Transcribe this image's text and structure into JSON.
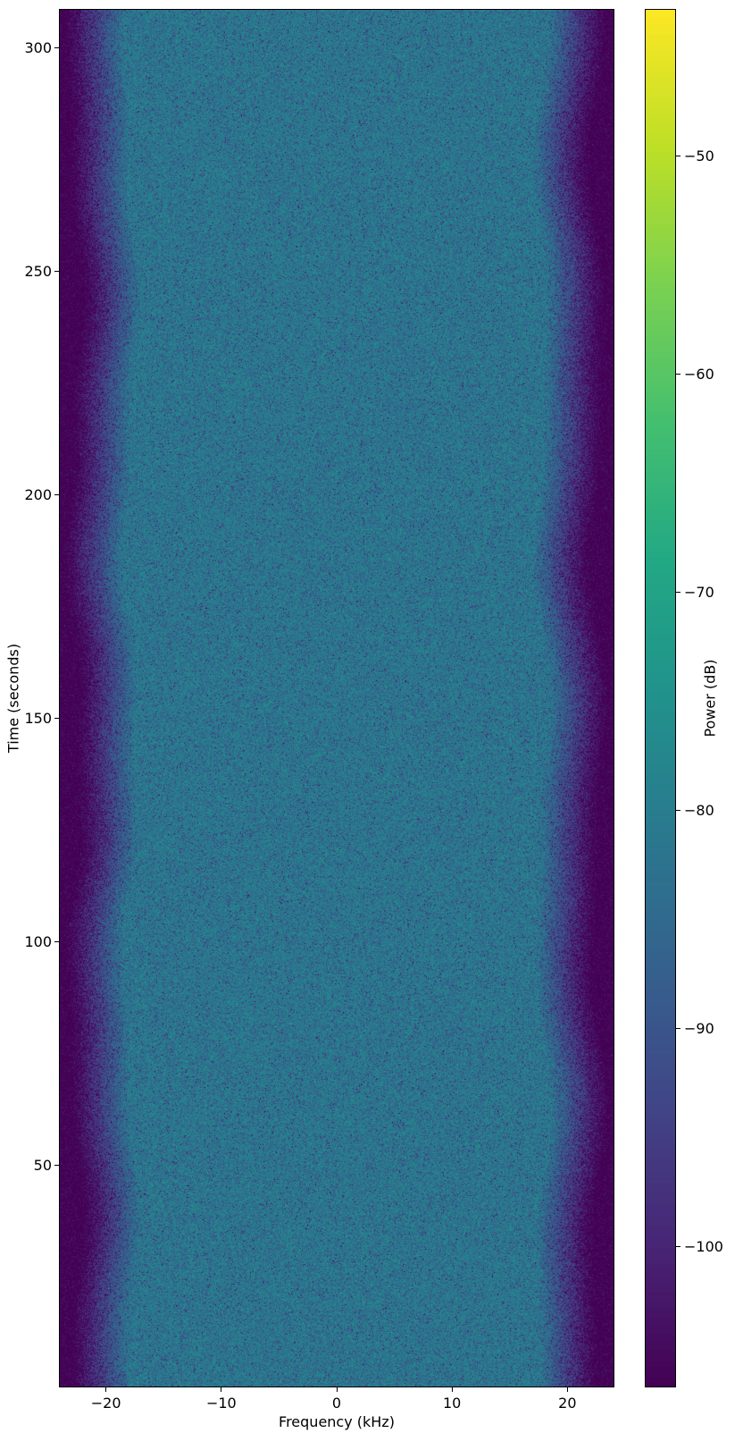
{
  "figure": {
    "background": "#ffffff"
  },
  "chart_data": {
    "type": "heatmap",
    "subtype": "spectrogram",
    "title": "",
    "xlabel": "Frequency (kHz)",
    "ylabel": "Time (seconds)",
    "colorbar_label": "Power (dB)",
    "xlim": [
      -24,
      24
    ],
    "ylim": [
      0.4,
      308.4
    ],
    "clim": [
      -106.4,
      -43.3
    ],
    "grid": false,
    "legend": null,
    "xticks": {
      "values": [
        -20,
        -10,
        0,
        10,
        20
      ],
      "labels": [
        "−20",
        "−10",
        "0",
        "10",
        "20"
      ]
    },
    "yticks": {
      "values": [
        50,
        100,
        150,
        200,
        250,
        300
      ],
      "labels": [
        "50",
        "100",
        "150",
        "200",
        "250",
        "300"
      ]
    },
    "colorbar_ticks": {
      "values": [
        -50,
        -60,
        -70,
        -80,
        -90,
        -100
      ],
      "labels": [
        "−50",
        "−60",
        "−70",
        "−80",
        "−90",
        "−100"
      ]
    },
    "colormap": {
      "name": "viridis",
      "stops": [
        "#440154",
        "#482475",
        "#414487",
        "#35608d",
        "#2a788e",
        "#21918c",
        "#22a884",
        "#44bf70",
        "#7ad151",
        "#bddf26",
        "#fde725"
      ]
    },
    "power_profile": {
      "description": "broadband signal: flat passband with steep rolloff to noise floor at band edges, constant over time",
      "passband_power_db": -80,
      "noise_floor_db": -107,
      "passband_edge_khz": 17.8,
      "stopband_edge_khz": 22.8,
      "noise_model": "exponential",
      "points": [
        {
          "freq_khz": -24.0,
          "power_db": -107
        },
        {
          "freq_khz": -22.8,
          "power_db": -107
        },
        {
          "freq_khz": -17.8,
          "power_db": -80
        },
        {
          "freq_khz": 17.8,
          "power_db": -80
        },
        {
          "freq_khz": 22.8,
          "power_db": -107
        },
        {
          "freq_khz": 24.0,
          "power_db": -107
        }
      ]
    }
  }
}
